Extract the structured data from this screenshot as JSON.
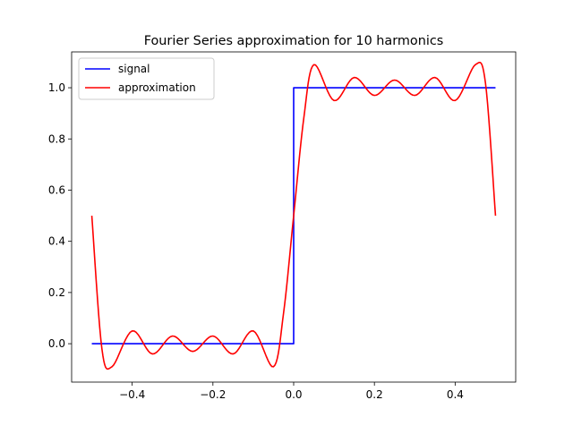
{
  "chart_data": {
    "type": "line",
    "title": "Fourier Series approximation for 10 harmonics",
    "xlabel": "",
    "ylabel": "",
    "xlim": [
      -0.55,
      0.55
    ],
    "ylim": [
      -0.15,
      1.14
    ],
    "xticks": [
      -0.4,
      -0.2,
      0.0,
      0.2,
      0.4
    ],
    "xtick_labels": [
      "−0.4",
      "−0.2",
      "0.0",
      "0.2",
      "0.4"
    ],
    "yticks": [
      0.0,
      0.2,
      0.4,
      0.6,
      0.8,
      1.0
    ],
    "ytick_labels": [
      "0.0",
      "0.2",
      "0.4",
      "0.6",
      "0.8",
      "1.0"
    ],
    "grid": false,
    "legend_position": "top-left",
    "series": [
      {
        "name": "signal",
        "color": "#0000ff",
        "x": [
          -0.5,
          0.0,
          0.0,
          0.5
        ],
        "y": [
          0.0,
          0.0,
          1.0,
          1.0
        ]
      },
      {
        "name": "approximation",
        "color": "#ff0000",
        "x": [
          -0.5,
          -0.475,
          -0.45,
          -0.4,
          -0.35,
          -0.3,
          -0.25,
          -0.2,
          -0.15,
          -0.1,
          -0.05,
          -0.025,
          0.0,
          0.025,
          0.05,
          0.1,
          0.15,
          0.2,
          0.25,
          0.3,
          0.35,
          0.4,
          0.45,
          0.475,
          0.5
        ],
        "y": [
          0.5,
          -0.02,
          -0.09,
          0.05,
          -0.04,
          0.03,
          -0.03,
          0.03,
          -0.04,
          0.05,
          -0.09,
          0.12,
          0.5,
          0.88,
          1.09,
          0.95,
          1.04,
          0.97,
          1.03,
          0.97,
          1.04,
          0.95,
          1.09,
          1.02,
          0.5
        ]
      }
    ]
  }
}
